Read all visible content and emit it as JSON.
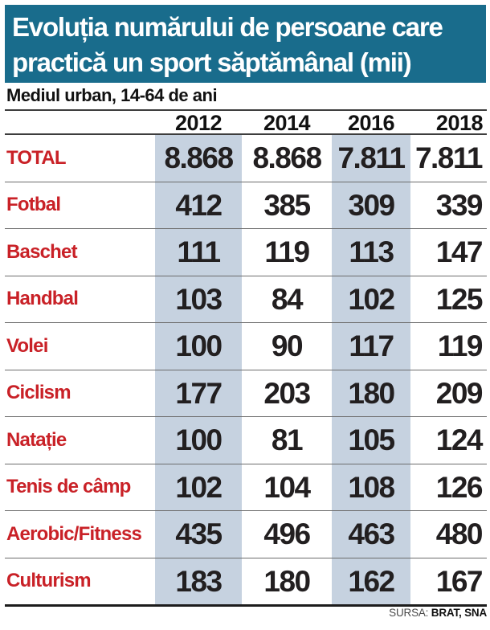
{
  "title": {
    "line1": "Evoluția numărului de persoane care",
    "line2": "practică un sport săptămânal (mii)"
  },
  "subtitle": "Mediul urban, 14-64 de ani",
  "source": {
    "label": "SURSA:",
    "value": "BRAT, SNA"
  },
  "colors": {
    "header_bg": "#196c8c",
    "band": "#c6d2e0",
    "label_red": "#c92127",
    "number_black": "#221f20"
  },
  "chart_data": {
    "type": "table",
    "title": "Evoluția numărului de persoane care practică un sport săptămânal (mii)",
    "subtitle": "Mediul urban, 14-64 de ani",
    "columns": [
      "2012",
      "2014",
      "2016",
      "2018"
    ],
    "shaded_columns": [
      "2012",
      "2016"
    ],
    "rows": [
      {
        "label": "TOTAL",
        "values": [
          "8.868",
          "8.868",
          "7.811",
          "7.811"
        ]
      },
      {
        "label": "Fotbal",
        "values": [
          "412",
          "385",
          "309",
          "339"
        ]
      },
      {
        "label": "Baschet",
        "values": [
          "111",
          "119",
          "113",
          "147"
        ]
      },
      {
        "label": "Handbal",
        "values": [
          "103",
          "84",
          "102",
          "125"
        ]
      },
      {
        "label": "Volei",
        "values": [
          "100",
          "90",
          "117",
          "119"
        ]
      },
      {
        "label": "Ciclism",
        "values": [
          "177",
          "203",
          "180",
          "209"
        ]
      },
      {
        "label": "Natație",
        "values": [
          "100",
          "81",
          "105",
          "124"
        ]
      },
      {
        "label": "Tenis de câmp",
        "values": [
          "102",
          "104",
          "108",
          "126"
        ]
      },
      {
        "label": "Aerobic/Fitness",
        "values": [
          "435",
          "496",
          "463",
          "480"
        ]
      },
      {
        "label": "Culturism",
        "values": [
          "183",
          "180",
          "162",
          "167"
        ]
      }
    ],
    "source": "SURSA: BRAT, SNA",
    "layout": {
      "grid": false,
      "shading": "vertical-bands-on-2012-and-2016"
    }
  }
}
